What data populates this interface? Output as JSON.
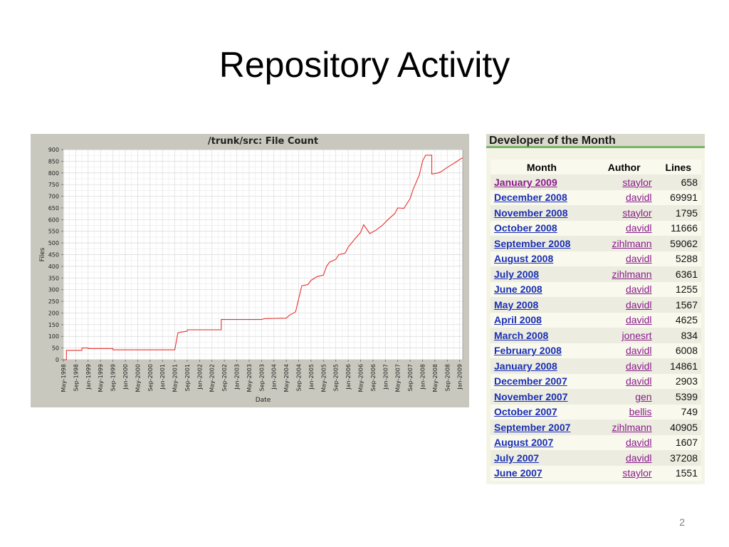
{
  "slide": {
    "title": "Repository Activity",
    "page_number": "2"
  },
  "chart_data": {
    "type": "line",
    "title": "/trunk/src: File Count",
    "xlabel": "Date",
    "ylabel": "Files",
    "ylim": [
      0,
      900
    ],
    "yticks": [
      0,
      50,
      100,
      150,
      200,
      250,
      300,
      350,
      400,
      450,
      500,
      550,
      600,
      650,
      700,
      750,
      800,
      850,
      900
    ],
    "xlim": [
      "1998-05",
      "2009-02"
    ],
    "xtick_labels": [
      "May-1998",
      "Sep-1998",
      "Jan-1999",
      "May-1999",
      "Sep-1999",
      "Jan-2000",
      "May-2000",
      "Sep-2000",
      "Jan-2001",
      "May-2001",
      "Sep-2001",
      "Jan-2002",
      "May-2002",
      "Sep-2002",
      "Jan-2003",
      "May-2003",
      "Sep-2003",
      "Jan-2004",
      "May-2004",
      "Sep-2004",
      "Jan-2005",
      "May-2005",
      "Sep-2005",
      "Jan-2006",
      "May-2006",
      "Sep-2006",
      "Jan-2007",
      "May-2007",
      "Sep-2007",
      "Jan-2008",
      "May-2008",
      "Sep-2008",
      "Jan-2009"
    ],
    "grid": true,
    "line_color": "#e8322c",
    "series": [
      {
        "x": [
          "1998-05",
          "1998-06",
          "1998-06",
          "1998-11",
          "1998-11",
          "1999-01",
          "1999-01",
          "1999-09",
          "1999-09",
          "2001-05",
          "2001-05",
          "2001-06",
          "2001-07",
          "2001-09",
          "2001-09",
          "2002-08",
          "2002-08",
          "2003-09",
          "2003-10",
          "2004-05",
          "2004-06",
          "2004-08",
          "2004-10",
          "2004-12",
          "2005-01",
          "2005-03",
          "2005-05",
          "2005-06",
          "2005-07",
          "2005-09",
          "2005-10",
          "2005-12",
          "2006-01",
          "2006-03",
          "2006-05",
          "2006-06",
          "2006-08",
          "2006-10",
          "2006-12",
          "2007-02",
          "2007-04",
          "2007-05",
          "2007-07",
          "2007-09",
          "2007-10",
          "2007-12",
          "2008-01",
          "2008-02",
          "2008-04",
          "2008-04",
          "2008-06",
          "2008-07",
          "2008-08",
          "2008-10",
          "2008-12",
          "2009-01",
          "2009-02"
        ],
        "y": [
          0,
          0,
          40,
          40,
          50,
          50,
          48,
          48,
          42,
          42,
          44,
          115,
          118,
          122,
          128,
          128,
          172,
          172,
          176,
          178,
          190,
          205,
          316,
          322,
          340,
          356,
          362,
          400,
          418,
          430,
          450,
          456,
          482,
          515,
          545,
          578,
          540,
          555,
          575,
          602,
          625,
          650,
          648,
          690,
          730,
          792,
          850,
          876,
          876,
          795,
          800,
          805,
          815,
          832,
          848,
          858,
          865
        ]
      }
    ]
  },
  "developer_of_month": {
    "title": "Developer of the Month",
    "columns": [
      "Month",
      "Author",
      "Lines"
    ],
    "rows": [
      {
        "month": "January 2009",
        "author": "staylor",
        "lines": "658"
      },
      {
        "month": "December 2008",
        "author": "davidl",
        "lines": "69991"
      },
      {
        "month": "November 2008",
        "author": "staylor",
        "lines": "1795"
      },
      {
        "month": "October 2008",
        "author": "davidl",
        "lines": "11666"
      },
      {
        "month": "September 2008",
        "author": "zihlmann",
        "lines": "59062"
      },
      {
        "month": "August 2008",
        "author": "davidl",
        "lines": "5288"
      },
      {
        "month": "July 2008",
        "author": "zihlmann",
        "lines": "6361"
      },
      {
        "month": "June 2008",
        "author": "davidl",
        "lines": "1255"
      },
      {
        "month": "May 2008",
        "author": "davidl",
        "lines": "1567"
      },
      {
        "month": "April 2008",
        "author": "davidl",
        "lines": "4625"
      },
      {
        "month": "March 2008",
        "author": "jonesrt",
        "lines": "834"
      },
      {
        "month": "February 2008",
        "author": "davidl",
        "lines": "6008"
      },
      {
        "month": "January 2008",
        "author": "davidl",
        "lines": "14861"
      },
      {
        "month": "December 2007",
        "author": "davidl",
        "lines": "2903"
      },
      {
        "month": "November 2007",
        "author": "gen",
        "lines": "5399"
      },
      {
        "month": "October 2007",
        "author": "bellis",
        "lines": "749"
      },
      {
        "month": "September 2007",
        "author": "zihlmann",
        "lines": "40905"
      },
      {
        "month": "August 2007",
        "author": "davidl",
        "lines": "1607"
      },
      {
        "month": "July 2007",
        "author": "davidl",
        "lines": "37208"
      },
      {
        "month": "June 2007",
        "author": "staylor",
        "lines": "1551"
      }
    ]
  }
}
